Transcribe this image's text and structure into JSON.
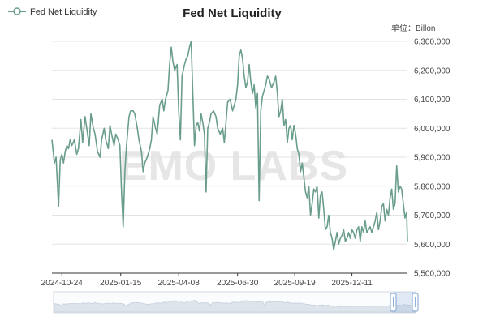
{
  "chart_data": {
    "type": "line",
    "title": "Fed Net Liquidity",
    "legend": {
      "label": "Fed Net Liquidity",
      "position": "top-left"
    },
    "unit_label": "单位：Billon",
    "watermark": "EMO LABS",
    "ylim": [
      5500000,
      6300000
    ],
    "y_ticks": [
      5500000,
      5600000,
      5700000,
      5800000,
      5900000,
      6000000,
      6100000,
      6200000,
      6300000
    ],
    "y_tick_labels": [
      "5,500,000",
      "5,600,000",
      "5,700,000",
      "5,800,000",
      "5,900,000",
      "6,000,000",
      "6,100,000",
      "6,200,000",
      "6,300,000"
    ],
    "x_tick_labels": [
      "2024-10-24",
      "2025-01-15",
      "2025-04-08",
      "2025-06-30",
      "2025-09-19",
      "2025-12-11"
    ],
    "x_tick_positions": [
      12,
      83,
      153,
      224,
      293,
      362
    ],
    "x_count": 430,
    "grid": true,
    "series": [
      {
        "name": "Fed Net Liquidity",
        "color": "#6a9e8a",
        "points": [
          [
            0,
            5960000
          ],
          [
            3,
            5880000
          ],
          [
            5,
            5900000
          ],
          [
            8,
            5730000
          ],
          [
            10,
            5890000
          ],
          [
            12,
            5910000
          ],
          [
            14,
            5880000
          ],
          [
            16,
            5920000
          ],
          [
            18,
            5940000
          ],
          [
            20,
            5930000
          ],
          [
            22,
            5960000
          ],
          [
            24,
            5940000
          ],
          [
            27,
            5960000
          ],
          [
            30,
            5910000
          ],
          [
            32,
            5930000
          ],
          [
            35,
            6030000
          ],
          [
            37,
            5950000
          ],
          [
            40,
            6040000
          ],
          [
            42,
            6000000
          ],
          [
            45,
            5940000
          ],
          [
            47,
            6050000
          ],
          [
            50,
            6000000
          ],
          [
            52,
            5980000
          ],
          [
            55,
            5920000
          ],
          [
            58,
            5900000
          ],
          [
            60,
            5960000
          ],
          [
            63,
            6000000
          ],
          [
            65,
            5960000
          ],
          [
            68,
            5930000
          ],
          [
            70,
            6010000
          ],
          [
            72,
            5980000
          ],
          [
            75,
            5940000
          ],
          [
            77,
            5980000
          ],
          [
            80,
            5960000
          ],
          [
            82,
            5940000
          ],
          [
            84,
            5780000
          ],
          [
            86,
            5660000
          ],
          [
            88,
            5850000
          ],
          [
            90,
            5940000
          ],
          [
            93,
            6040000
          ],
          [
            95,
            6060000
          ],
          [
            98,
            6060000
          ],
          [
            100,
            6050000
          ],
          [
            103,
            6000000
          ],
          [
            105,
            5960000
          ],
          [
            108,
            5920000
          ],
          [
            110,
            5850000
          ],
          [
            112,
            5880000
          ],
          [
            115,
            5900000
          ],
          [
            118,
            5930000
          ],
          [
            120,
            5960000
          ],
          [
            122,
            6040000
          ],
          [
            125,
            6000000
          ],
          [
            127,
            5980000
          ],
          [
            130,
            6080000
          ],
          [
            133,
            6100000
          ],
          [
            135,
            6060000
          ],
          [
            137,
            6100000
          ],
          [
            140,
            6130000
          ],
          [
            142,
            6220000
          ],
          [
            144,
            6280000
          ],
          [
            146,
            6230000
          ],
          [
            148,
            6200000
          ],
          [
            151,
            6220000
          ],
          [
            153,
            6060000
          ],
          [
            155,
            5960000
          ],
          [
            157,
            6180000
          ],
          [
            160,
            6220000
          ],
          [
            162,
            6240000
          ],
          [
            164,
            6250000
          ],
          [
            166,
            6280000
          ],
          [
            168,
            6300000
          ],
          [
            170,
            6120000
          ],
          [
            172,
            5940000
          ],
          [
            174,
            6010000
          ],
          [
            176,
            6020000
          ],
          [
            178,
            5990000
          ],
          [
            180,
            6050000
          ],
          [
            182,
            6020000
          ],
          [
            184,
            5980000
          ],
          [
            186,
            5780000
          ],
          [
            188,
            6000000
          ],
          [
            190,
            6020000
          ],
          [
            192,
            6050000
          ],
          [
            195,
            6060000
          ],
          [
            198,
            6040000
          ],
          [
            200,
            6000000
          ],
          [
            203,
            5980000
          ],
          [
            206,
            6000000
          ],
          [
            208,
            5950000
          ],
          [
            210,
            6020000
          ],
          [
            212,
            6090000
          ],
          [
            215,
            6100000
          ],
          [
            218,
            6060000
          ],
          [
            220,
            6080000
          ],
          [
            222,
            6100000
          ],
          [
            224,
            6150000
          ],
          [
            226,
            6250000
          ],
          [
            228,
            6270000
          ],
          [
            230,
            6240000
          ],
          [
            232,
            6180000
          ],
          [
            234,
            6140000
          ],
          [
            236,
            6160000
          ],
          [
            238,
            6220000
          ],
          [
            240,
            6160000
          ],
          [
            242,
            6120000
          ],
          [
            244,
            6150000
          ],
          [
            246,
            6070000
          ],
          [
            248,
            6120000
          ],
          [
            250,
            5750000
          ],
          [
            252,
            6060000
          ],
          [
            254,
            6110000
          ],
          [
            256,
            6130000
          ],
          [
            258,
            6150000
          ],
          [
            260,
            6180000
          ],
          [
            262,
            6170000
          ],
          [
            265,
            6140000
          ],
          [
            268,
            6160000
          ],
          [
            270,
            6180000
          ],
          [
            272,
            6120000
          ],
          [
            274,
            6040000
          ],
          [
            276,
            6060000
          ],
          [
            278,
            6100000
          ],
          [
            280,
            6010000
          ],
          [
            282,
            6030000
          ],
          [
            284,
            5950000
          ],
          [
            286,
            6000000
          ],
          [
            288,
            6010000
          ],
          [
            290,
            5960000
          ],
          [
            292,
            6010000
          ],
          [
            294,
            5980000
          ],
          [
            296,
            5930000
          ],
          [
            298,
            5910000
          ],
          [
            300,
            5850000
          ],
          [
            302,
            5880000
          ],
          [
            304,
            5830000
          ],
          [
            306,
            5780000
          ],
          [
            308,
            5760000
          ],
          [
            310,
            5800000
          ],
          [
            312,
            5700000
          ],
          [
            314,
            5740000
          ],
          [
            316,
            5790000
          ],
          [
            318,
            5780000
          ],
          [
            320,
            5800000
          ],
          [
            322,
            5690000
          ],
          [
            324,
            5770000
          ],
          [
            326,
            5780000
          ],
          [
            328,
            5720000
          ],
          [
            330,
            5650000
          ],
          [
            332,
            5660000
          ],
          [
            334,
            5700000
          ],
          [
            336,
            5640000
          ],
          [
            338,
            5620000
          ],
          [
            340,
            5580000
          ],
          [
            342,
            5610000
          ],
          [
            344,
            5640000
          ],
          [
            346,
            5600000
          ],
          [
            348,
            5620000
          ],
          [
            350,
            5630000
          ],
          [
            352,
            5650000
          ],
          [
            354,
            5610000
          ],
          [
            356,
            5620000
          ],
          [
            358,
            5640000
          ],
          [
            360,
            5620000
          ],
          [
            362,
            5650000
          ],
          [
            364,
            5640000
          ],
          [
            366,
            5620000
          ],
          [
            368,
            5650000
          ],
          [
            370,
            5660000
          ],
          [
            372,
            5610000
          ],
          [
            374,
            5660000
          ],
          [
            376,
            5640000
          ],
          [
            378,
            5680000
          ],
          [
            380,
            5640000
          ],
          [
            382,
            5650000
          ],
          [
            384,
            5660000
          ],
          [
            386,
            5640000
          ],
          [
            388,
            5660000
          ],
          [
            390,
            5680000
          ],
          [
            392,
            5710000
          ],
          [
            394,
            5650000
          ],
          [
            396,
            5680000
          ],
          [
            398,
            5730000
          ],
          [
            400,
            5740000
          ],
          [
            402,
            5680000
          ],
          [
            404,
            5720000
          ],
          [
            406,
            5700000
          ],
          [
            408,
            5760000
          ],
          [
            410,
            5790000
          ],
          [
            412,
            5720000
          ],
          [
            414,
            5740000
          ],
          [
            416,
            5870000
          ],
          [
            418,
            5780000
          ],
          [
            420,
            5800000
          ],
          [
            422,
            5790000
          ],
          [
            424,
            5740000
          ],
          [
            426,
            5690000
          ],
          [
            428,
            5710000
          ],
          [
            429,
            5610000
          ]
        ]
      }
    ]
  },
  "colors": {
    "line": "#6a9e8a",
    "grid": "#e3e3e3",
    "axis": "#333333",
    "watermark": "#e6e6e6",
    "slider_fill": "#dde4ec",
    "slider_border": "#c6d0dc",
    "slider_handle": "#8fb0d8"
  }
}
